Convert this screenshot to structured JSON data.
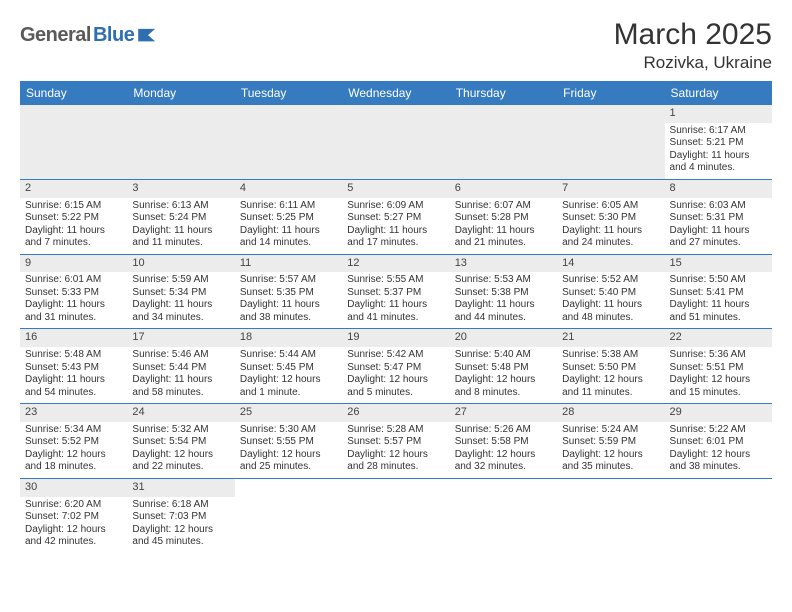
{
  "logo": {
    "dark": "General",
    "blue": "Blue"
  },
  "title": "March 2025",
  "location": "Rozivka, Ukraine",
  "colors": {
    "header_bg": "#367bbf",
    "header_text": "#ffffff",
    "daynum_bg": "#ececec",
    "border": "#367bbf",
    "logo_blue": "#2f6fb0",
    "logo_dark": "#5a5a5a"
  },
  "weekdays": [
    "Sunday",
    "Monday",
    "Tuesday",
    "Wednesday",
    "Thursday",
    "Friday",
    "Saturday"
  ],
  "weeks": [
    [
      null,
      null,
      null,
      null,
      null,
      null,
      {
        "n": "1",
        "sr": "Sunrise: 6:17 AM",
        "ss": "Sunset: 5:21 PM",
        "dl": "Daylight: 11 hours and 4 minutes."
      }
    ],
    [
      {
        "n": "2",
        "sr": "Sunrise: 6:15 AM",
        "ss": "Sunset: 5:22 PM",
        "dl": "Daylight: 11 hours and 7 minutes."
      },
      {
        "n": "3",
        "sr": "Sunrise: 6:13 AM",
        "ss": "Sunset: 5:24 PM",
        "dl": "Daylight: 11 hours and 11 minutes."
      },
      {
        "n": "4",
        "sr": "Sunrise: 6:11 AM",
        "ss": "Sunset: 5:25 PM",
        "dl": "Daylight: 11 hours and 14 minutes."
      },
      {
        "n": "5",
        "sr": "Sunrise: 6:09 AM",
        "ss": "Sunset: 5:27 PM",
        "dl": "Daylight: 11 hours and 17 minutes."
      },
      {
        "n": "6",
        "sr": "Sunrise: 6:07 AM",
        "ss": "Sunset: 5:28 PM",
        "dl": "Daylight: 11 hours and 21 minutes."
      },
      {
        "n": "7",
        "sr": "Sunrise: 6:05 AM",
        "ss": "Sunset: 5:30 PM",
        "dl": "Daylight: 11 hours and 24 minutes."
      },
      {
        "n": "8",
        "sr": "Sunrise: 6:03 AM",
        "ss": "Sunset: 5:31 PM",
        "dl": "Daylight: 11 hours and 27 minutes."
      }
    ],
    [
      {
        "n": "9",
        "sr": "Sunrise: 6:01 AM",
        "ss": "Sunset: 5:33 PM",
        "dl": "Daylight: 11 hours and 31 minutes."
      },
      {
        "n": "10",
        "sr": "Sunrise: 5:59 AM",
        "ss": "Sunset: 5:34 PM",
        "dl": "Daylight: 11 hours and 34 minutes."
      },
      {
        "n": "11",
        "sr": "Sunrise: 5:57 AM",
        "ss": "Sunset: 5:35 PM",
        "dl": "Daylight: 11 hours and 38 minutes."
      },
      {
        "n": "12",
        "sr": "Sunrise: 5:55 AM",
        "ss": "Sunset: 5:37 PM",
        "dl": "Daylight: 11 hours and 41 minutes."
      },
      {
        "n": "13",
        "sr": "Sunrise: 5:53 AM",
        "ss": "Sunset: 5:38 PM",
        "dl": "Daylight: 11 hours and 44 minutes."
      },
      {
        "n": "14",
        "sr": "Sunrise: 5:52 AM",
        "ss": "Sunset: 5:40 PM",
        "dl": "Daylight: 11 hours and 48 minutes."
      },
      {
        "n": "15",
        "sr": "Sunrise: 5:50 AM",
        "ss": "Sunset: 5:41 PM",
        "dl": "Daylight: 11 hours and 51 minutes."
      }
    ],
    [
      {
        "n": "16",
        "sr": "Sunrise: 5:48 AM",
        "ss": "Sunset: 5:43 PM",
        "dl": "Daylight: 11 hours and 54 minutes."
      },
      {
        "n": "17",
        "sr": "Sunrise: 5:46 AM",
        "ss": "Sunset: 5:44 PM",
        "dl": "Daylight: 11 hours and 58 minutes."
      },
      {
        "n": "18",
        "sr": "Sunrise: 5:44 AM",
        "ss": "Sunset: 5:45 PM",
        "dl": "Daylight: 12 hours and 1 minute."
      },
      {
        "n": "19",
        "sr": "Sunrise: 5:42 AM",
        "ss": "Sunset: 5:47 PM",
        "dl": "Daylight: 12 hours and 5 minutes."
      },
      {
        "n": "20",
        "sr": "Sunrise: 5:40 AM",
        "ss": "Sunset: 5:48 PM",
        "dl": "Daylight: 12 hours and 8 minutes."
      },
      {
        "n": "21",
        "sr": "Sunrise: 5:38 AM",
        "ss": "Sunset: 5:50 PM",
        "dl": "Daylight: 12 hours and 11 minutes."
      },
      {
        "n": "22",
        "sr": "Sunrise: 5:36 AM",
        "ss": "Sunset: 5:51 PM",
        "dl": "Daylight: 12 hours and 15 minutes."
      }
    ],
    [
      {
        "n": "23",
        "sr": "Sunrise: 5:34 AM",
        "ss": "Sunset: 5:52 PM",
        "dl": "Daylight: 12 hours and 18 minutes."
      },
      {
        "n": "24",
        "sr": "Sunrise: 5:32 AM",
        "ss": "Sunset: 5:54 PM",
        "dl": "Daylight: 12 hours and 22 minutes."
      },
      {
        "n": "25",
        "sr": "Sunrise: 5:30 AM",
        "ss": "Sunset: 5:55 PM",
        "dl": "Daylight: 12 hours and 25 minutes."
      },
      {
        "n": "26",
        "sr": "Sunrise: 5:28 AM",
        "ss": "Sunset: 5:57 PM",
        "dl": "Daylight: 12 hours and 28 minutes."
      },
      {
        "n": "27",
        "sr": "Sunrise: 5:26 AM",
        "ss": "Sunset: 5:58 PM",
        "dl": "Daylight: 12 hours and 32 minutes."
      },
      {
        "n": "28",
        "sr": "Sunrise: 5:24 AM",
        "ss": "Sunset: 5:59 PM",
        "dl": "Daylight: 12 hours and 35 minutes."
      },
      {
        "n": "29",
        "sr": "Sunrise: 5:22 AM",
        "ss": "Sunset: 6:01 PM",
        "dl": "Daylight: 12 hours and 38 minutes."
      }
    ],
    [
      {
        "n": "30",
        "sr": "Sunrise: 6:20 AM",
        "ss": "Sunset: 7:02 PM",
        "dl": "Daylight: 12 hours and 42 minutes."
      },
      {
        "n": "31",
        "sr": "Sunrise: 6:18 AM",
        "ss": "Sunset: 7:03 PM",
        "dl": "Daylight: 12 hours and 45 minutes."
      },
      null,
      null,
      null,
      null,
      null
    ]
  ]
}
